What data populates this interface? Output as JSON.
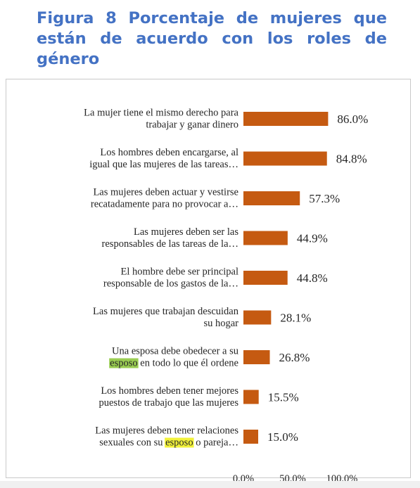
{
  "figure": {
    "title": "Figura 8 Porcentaje de mujeres que están de acuerdo con los roles de género"
  },
  "chart_data": {
    "type": "bar",
    "orientation": "horizontal",
    "title": "",
    "xlabel": "",
    "ylabel": "",
    "xlim": [
      0,
      100
    ],
    "ticks": [
      "0.0%",
      "50.0%",
      "100.0%"
    ],
    "bar_color": "#C55A11",
    "grid": false,
    "categories": [
      [
        "La mujer tiene el mismo derecho para",
        "trabajar y ganar dinero"
      ],
      [
        "Los hombres deben encargarse, al",
        "igual que las mujeres de las tareas…"
      ],
      [
        "Las mujeres deben actuar y vestirse",
        "recatadamente para no provocar a…"
      ],
      [
        "Las mujeres deben ser las",
        "responsables de las tareas de la…"
      ],
      [
        "El hombre debe ser principal",
        "responsable de los gastos de la…"
      ],
      [
        "Las mujeres que trabajan descuidan",
        "su hogar"
      ],
      [
        "Una esposa debe obedecer a su",
        "esposo en todo lo que él ordene"
      ],
      [
        "Los hombres deben tener mejores",
        "puestos de trabajo que las mujeres"
      ],
      [
        "Las mujeres deben tener relaciones",
        "sexuales con su esposo o pareja…"
      ]
    ],
    "values": [
      86.0,
      84.8,
      57.3,
      44.9,
      44.8,
      28.1,
      26.8,
      15.5,
      15.0
    ],
    "value_labels": [
      "86.0%",
      "84.8%",
      "57.3%",
      "44.9%",
      "44.8%",
      "28.1%",
      "26.8%",
      "15.5%",
      "15.0%"
    ],
    "highlights": [
      {
        "category": 6,
        "line": 1,
        "word": "esposo",
        "color": "#9acd52"
      },
      {
        "category": 8,
        "line": 1,
        "word": "esposo",
        "color": "#f2f23a"
      }
    ]
  }
}
